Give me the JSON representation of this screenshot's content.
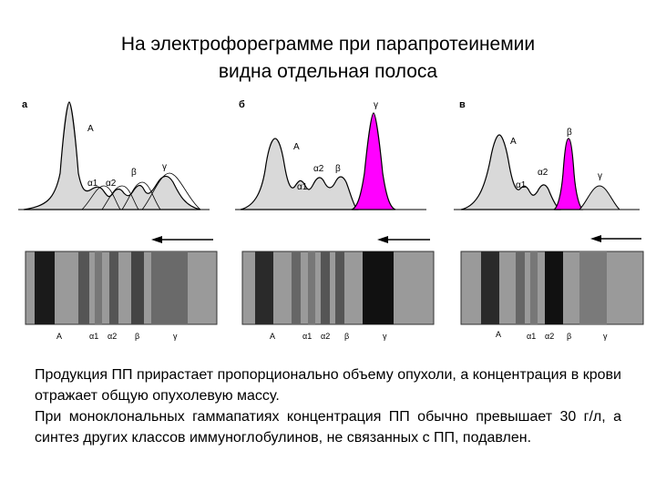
{
  "title": {
    "line1": "На электрофореграмме при парапротеинемии",
    "line2": "видна отдельная полоса"
  },
  "panels": [
    {
      "letter": "а",
      "peaks": [
        "A",
        "α1",
        "α2",
        "β",
        "γ"
      ],
      "bands": [
        "A",
        "α1",
        "α2",
        "β",
        "γ"
      ]
    },
    {
      "letter": "б",
      "peaks": [
        "A",
        "α1",
        "α2",
        "β",
        "γ"
      ],
      "bands": [
        "A",
        "α1",
        "α2",
        "β",
        "γ"
      ]
    },
    {
      "letter": "в",
      "peaks": [
        "A",
        "α1",
        "α2",
        "β",
        "γ"
      ],
      "bands": [
        "A",
        "α1",
        "α2",
        "β",
        "γ"
      ]
    }
  ],
  "colors": {
    "highlight": "#ff00ff",
    "curve_fill": "#d9d9d9",
    "band": "#1a1a1a"
  },
  "text": {
    "p1": "Продукция ПП прирастает пропорционально объему опухоли, а концентрация в крови отражает общую опухолевую массу.",
    "p2": "При моноклональных гаммапатиях концентрация ПП обычно превышает 30 г/л, а синтез других классов иммуноглобулинов, не связанных с ПП, подавлен."
  }
}
